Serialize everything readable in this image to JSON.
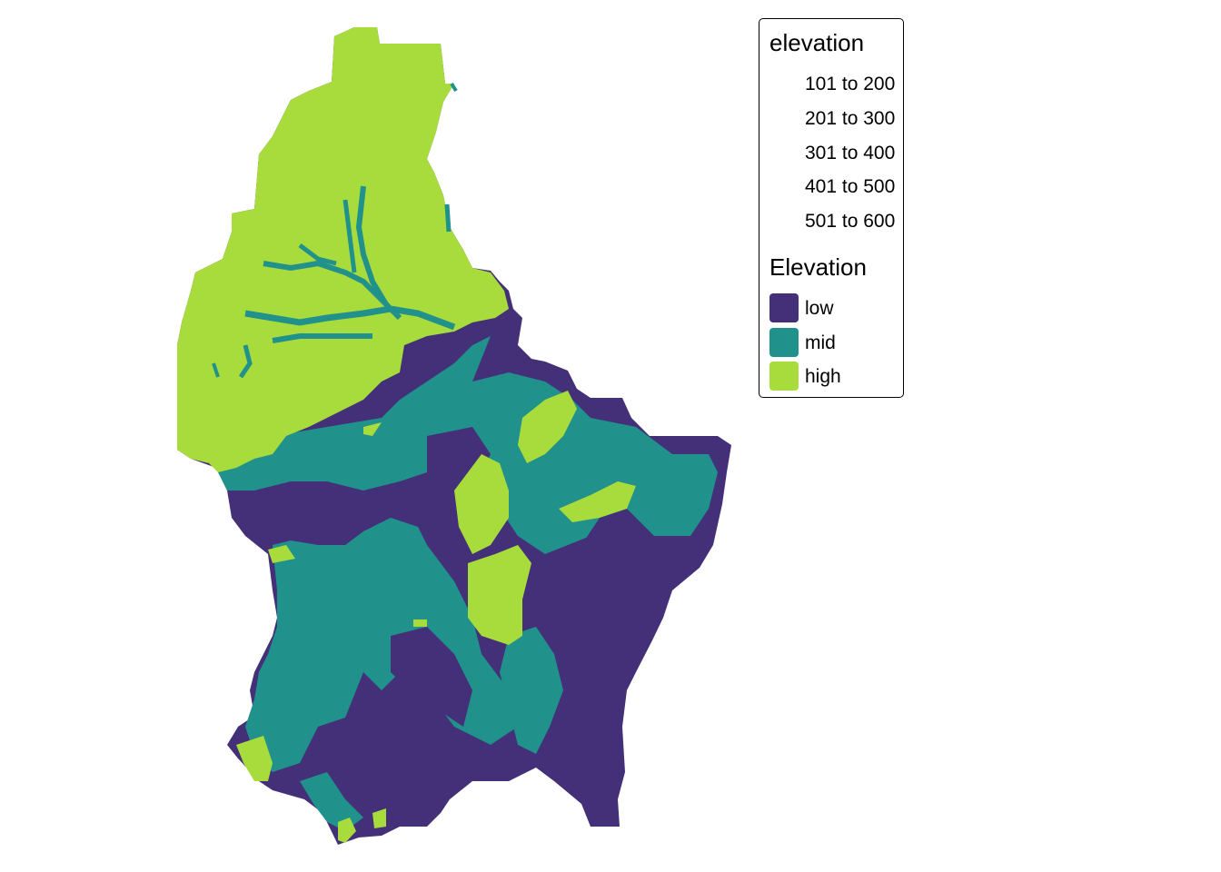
{
  "colors": {
    "low": "#433078",
    "mid": "#21918c",
    "high": "#a8db3c",
    "background": "#ffffff"
  },
  "legend": {
    "title_1": "elevation",
    "ranges": [
      {
        "label": "101 to 200"
      },
      {
        "label": "201 to 300"
      },
      {
        "label": "301 to 400"
      },
      {
        "label": "401 to 500"
      },
      {
        "label": "501 to 600"
      }
    ],
    "title_2": "Elevation",
    "classes": [
      {
        "label": "low",
        "color": "#433078"
      },
      {
        "label": "mid",
        "color": "#21918c"
      },
      {
        "label": "high",
        "color": "#a8db3c"
      }
    ]
  }
}
